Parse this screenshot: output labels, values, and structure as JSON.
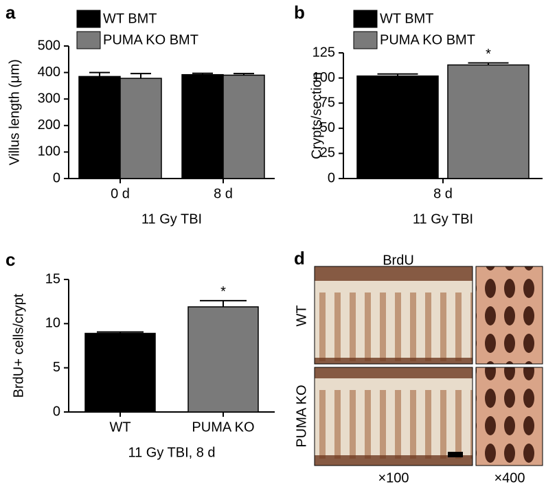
{
  "chart_data": [
    {
      "type": "bar",
      "panel": "a",
      "ylabel": "Villus length (μm)",
      "xlabel": "11 Gy TBI",
      "categories": [
        "0 d",
        "8 d"
      ],
      "series": [
        {
          "name": "WT BMT",
          "color": "#000000",
          "values": [
            385,
            392
          ],
          "errors": [
            15,
            5
          ]
        },
        {
          "name": "PUMA KO BMT",
          "color": "#7a7a7a",
          "values": [
            378,
            390
          ],
          "errors": [
            18,
            6
          ]
        }
      ],
      "ylim": [
        0,
        500
      ],
      "yticks": [
        0,
        100,
        200,
        300,
        400,
        500
      ]
    },
    {
      "type": "bar",
      "panel": "b",
      "ylabel": "Crypts/section",
      "xlabel": "11 Gy TBI",
      "categories": [
        "8 d"
      ],
      "series": [
        {
          "name": "WT BMT",
          "color": "#000000",
          "values": [
            102
          ],
          "errors": [
            2
          ]
        },
        {
          "name": "PUMA KO BMT",
          "color": "#7a7a7a",
          "values": [
            113
          ],
          "errors": [
            2
          ]
        }
      ],
      "significance": "*",
      "ylim": [
        0,
        125
      ],
      "yticks": [
        0,
        25,
        50,
        75,
        100,
        125
      ]
    },
    {
      "type": "bar",
      "panel": "c",
      "ylabel": "BrdU+ cells/crypt",
      "xlabel": "11 Gy TBI, 8 d",
      "categories": [
        "WT",
        "PUMA KO"
      ],
      "values": [
        8.9,
        11.9
      ],
      "errors": [
        0.15,
        0.7
      ],
      "colors": [
        "#000000",
        "#7a7a7a"
      ],
      "significance": "*",
      "ylim": [
        0,
        15
      ],
      "yticks": [
        0,
        5,
        10,
        15
      ]
    }
  ],
  "panel_d": {
    "panel": "d",
    "title": "BrdU",
    "rows": [
      "WT",
      "PUMA KO"
    ],
    "columns": [
      "×100",
      "×400"
    ]
  }
}
